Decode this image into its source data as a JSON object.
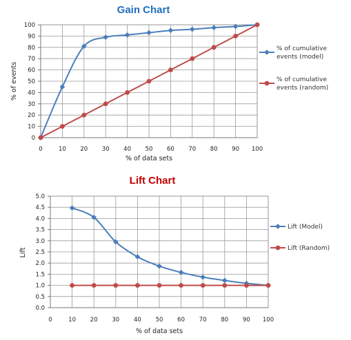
{
  "chart_data": [
    {
      "type": "line",
      "title": "Gain Chart",
      "title_color": "#1f6fbf",
      "xlabel": "% of data sets",
      "ylabel": "% of events",
      "xlim": [
        0,
        100
      ],
      "ylim": [
        0,
        100
      ],
      "x_ticks": [
        0,
        10,
        20,
        30,
        40,
        50,
        60,
        70,
        80,
        90,
        100
      ],
      "y_ticks": [
        0,
        10,
        20,
        30,
        40,
        50,
        60,
        70,
        80,
        90,
        100
      ],
      "y_tick_format": "int",
      "grid": true,
      "legend_position": "right",
      "series": [
        {
          "name": "% of cumulative events (model)",
          "legend_lines": [
            "% of cumulative",
            "events (model)"
          ],
          "color": "#4a7ebb",
          "marker": "diamond",
          "smooth": true,
          "x": [
            0,
            10,
            20,
            30,
            40,
            50,
            60,
            70,
            80,
            90,
            100
          ],
          "values": [
            0,
            45,
            81,
            89,
            91,
            93,
            95,
            96,
            97.5,
            98.5,
            100
          ]
        },
        {
          "name": "% of cumulative events (random)",
          "legend_lines": [
            "% of cumulative",
            "events (random)"
          ],
          "color": "#be4b48",
          "marker": "circle",
          "smooth": false,
          "x": [
            0,
            10,
            20,
            30,
            40,
            50,
            60,
            70,
            80,
            90,
            100
          ],
          "values": [
            0,
            10,
            20,
            30,
            40,
            50,
            60,
            70,
            80,
            90,
            100
          ]
        }
      ]
    },
    {
      "type": "line",
      "title": "Lift Chart",
      "title_color": "#c00000",
      "xlabel": "% of data sets",
      "ylabel": "Lift",
      "xlim": [
        0,
        100
      ],
      "ylim": [
        0,
        5
      ],
      "x_ticks": [
        0,
        10,
        20,
        30,
        40,
        50,
        60,
        70,
        80,
        90,
        100
      ],
      "y_ticks": [
        0.0,
        0.5,
        1.0,
        1.5,
        2.0,
        2.5,
        3.0,
        3.5,
        4.0,
        4.5,
        5.0
      ],
      "y_tick_format": "one_decimal",
      "grid": true,
      "legend_position": "right",
      "series": [
        {
          "name": "Lift (Model)",
          "legend_lines": [
            "Lift (Model)"
          ],
          "color": "#4a7ebb",
          "marker": "diamond",
          "smooth": true,
          "x": [
            10,
            20,
            30,
            40,
            50,
            60,
            70,
            80,
            90,
            100
          ],
          "values": [
            4.47,
            4.05,
            2.95,
            2.28,
            1.86,
            1.58,
            1.37,
            1.22,
            1.09,
            1.0
          ]
        },
        {
          "name": "Lift (Random)",
          "legend_lines": [
            "Lift (Random)"
          ],
          "color": "#be4b48",
          "marker": "circle",
          "smooth": false,
          "x": [
            10,
            20,
            30,
            40,
            50,
            60,
            70,
            80,
            90,
            100
          ],
          "values": [
            1,
            1,
            1,
            1,
            1,
            1,
            1,
            1,
            1,
            1
          ]
        }
      ]
    }
  ]
}
